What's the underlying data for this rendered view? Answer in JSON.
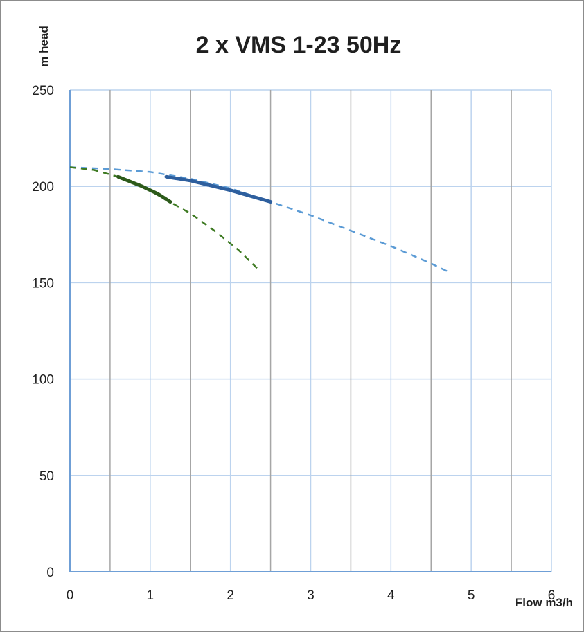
{
  "chart_data": {
    "type": "line",
    "title": "2 x VMS 1-23 50Hz",
    "xlabel": "Flow m3/h",
    "ylabel": "m head",
    "xlim": [
      0,
      6
    ],
    "ylim": [
      0,
      250
    ],
    "x_ticks": [
      0,
      1,
      2,
      3,
      4,
      5,
      6
    ],
    "y_ticks": [
      0,
      50,
      100,
      150,
      200,
      250
    ],
    "grid": {
      "vertical_major": [
        0,
        1,
        2,
        3,
        4,
        5,
        6
      ],
      "vertical_minor": [
        0.5,
        1.5,
        2.5,
        3.5,
        4.5,
        5.5
      ],
      "horizontal": [
        0,
        50,
        100,
        150,
        200,
        250
      ]
    },
    "colors": {
      "axis": "#6f9fd6",
      "grid_major": "#bcd3ee",
      "grid_minor": "#a6a6a6",
      "blue_dashed": "#5b9bd5",
      "blue_solid": "#2e5f9e",
      "green_dashed": "#3e7a22",
      "green_solid": "#2c5a1a"
    },
    "series": [
      {
        "style": "dashed",
        "color_key": "blue_dashed",
        "points": [
          [
            0,
            210
          ],
          [
            0.5,
            209
          ],
          [
            1,
            207.5
          ],
          [
            1.5,
            204
          ],
          [
            2,
            199
          ],
          [
            2.5,
            192
          ],
          [
            3,
            185
          ],
          [
            3.5,
            177
          ],
          [
            4,
            169
          ],
          [
            4.5,
            160
          ],
          [
            4.75,
            155
          ]
        ]
      },
      {
        "style": "solid",
        "color_key": "blue_solid",
        "points": [
          [
            1.2,
            205
          ],
          [
            1.5,
            203
          ],
          [
            2,
            198
          ],
          [
            2.5,
            192
          ]
        ]
      },
      {
        "style": "dashed",
        "color_key": "green_dashed",
        "points": [
          [
            0,
            210
          ],
          [
            0.3,
            208.5
          ],
          [
            0.6,
            205
          ],
          [
            0.9,
            200
          ],
          [
            1.2,
            193
          ],
          [
            1.5,
            186
          ],
          [
            1.8,
            177
          ],
          [
            2.1,
            167
          ],
          [
            2.37,
            156
          ]
        ]
      },
      {
        "style": "solid",
        "color_key": "green_solid",
        "points": [
          [
            0.6,
            205
          ],
          [
            0.9,
            200
          ],
          [
            1.1,
            196
          ],
          [
            1.25,
            192
          ]
        ]
      }
    ]
  }
}
